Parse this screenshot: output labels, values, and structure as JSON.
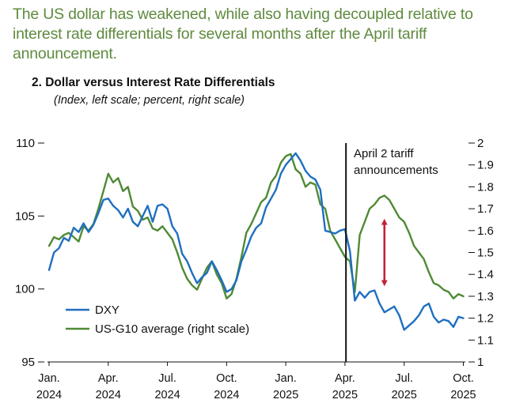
{
  "headline": "The US dollar has weakened, while also having decoupled relative to interest rate differentials for several months after the April tariff announcement.",
  "colors": {
    "headline": "#5e8a3e",
    "dxy": "#1f6fc0",
    "diff": "#4f8a35",
    "arrow": "#c0233a",
    "vline": "#111111"
  },
  "chart_data": {
    "type": "line",
    "title": "2. Dollar versus Interest Rate Differentials",
    "subtitle": "(Index, left scale; percent, right scale)",
    "x_ticks": [
      {
        "label": [
          "Jan.",
          "2024"
        ],
        "month": 0
      },
      {
        "label": [
          "Apr.",
          "2024"
        ],
        "month": 3
      },
      {
        "label": [
          "Jul.",
          "2024"
        ],
        "month": 6
      },
      {
        "label": [
          "Oct.",
          "2024"
        ],
        "month": 9
      },
      {
        "label": [
          "Jan.",
          "2025"
        ],
        "month": 12
      },
      {
        "label": [
          "Apr.",
          "2025"
        ],
        "month": 15
      },
      {
        "label": [
          "Jul.",
          "2025"
        ],
        "month": 18
      },
      {
        "label": [
          "Oct.",
          "2025"
        ],
        "month": 21
      }
    ],
    "xlim": [
      0,
      21.1
    ],
    "y_left": {
      "ylim": [
        95,
        110
      ],
      "ticks": [
        "95",
        "100",
        "105",
        "110"
      ]
    },
    "y_right": {
      "ylim": [
        1.0,
        2.0
      ],
      "ticks": [
        "1",
        "1.1",
        "1.2",
        "1.3",
        "1.4",
        "1.5",
        "1.6",
        "1.7",
        "1.8",
        "1.9",
        "2"
      ]
    },
    "annotation": {
      "lines": [
        "April 2 tariff",
        "announcements"
      ],
      "month": 15.05
    },
    "arrow": {
      "month": 17.0,
      "from_left": 100.4,
      "to_left": 104.6
    },
    "series": [
      {
        "name": "DXY",
        "axis": "left",
        "x": [
          0,
          0.25,
          0.5,
          0.75,
          1,
          1.25,
          1.5,
          1.75,
          2,
          2.25,
          2.5,
          2.75,
          3,
          3.25,
          3.5,
          3.75,
          4,
          4.25,
          4.5,
          4.75,
          5,
          5.25,
          5.5,
          5.75,
          6,
          6.25,
          6.5,
          6.75,
          7,
          7.25,
          7.5,
          7.75,
          8,
          8.25,
          8.5,
          8.75,
          9,
          9.25,
          9.5,
          9.75,
          10,
          10.25,
          10.5,
          10.75,
          11,
          11.25,
          11.5,
          11.75,
          12,
          12.25,
          12.5,
          12.75,
          13,
          13.25,
          13.5,
          13.75,
          14,
          14.25,
          14.5,
          14.75,
          15,
          15.25,
          15.5,
          15.75,
          16,
          16.25,
          16.5,
          16.75,
          17,
          17.25,
          17.5,
          17.75,
          18,
          18.25,
          18.5,
          18.75,
          19,
          19.25,
          19.5,
          19.75,
          20,
          20.25,
          20.5,
          20.75,
          21
        ],
        "values": [
          101.3,
          102.5,
          102.8,
          103.5,
          103.3,
          104.2,
          103.9,
          104.5,
          103.9,
          104.4,
          105.2,
          106.1,
          106.2,
          105.7,
          105.4,
          104.9,
          105.5,
          104.6,
          104.3,
          105.0,
          105.7,
          104.6,
          105.7,
          105.8,
          105.5,
          104.3,
          103.8,
          102.4,
          101.9,
          101.1,
          100.4,
          100.8,
          101.1,
          101.9,
          101.3,
          100.6,
          99.8,
          100.0,
          100.6,
          101.9,
          102.7,
          103.6,
          104.2,
          104.5,
          105.6,
          106.2,
          106.8,
          107.9,
          108.5,
          108.9,
          109.3,
          108.8,
          108.1,
          107.7,
          107.5,
          106.8,
          104.0,
          103.9,
          103.8,
          104.0,
          104.1,
          102.6,
          99.2,
          99.8,
          99.4,
          99.8,
          99.9,
          99.0,
          98.4,
          98.6,
          98.8,
          98.2,
          97.2,
          97.5,
          97.8,
          98.2,
          98.8,
          99.0,
          98.1,
          97.7,
          97.9,
          97.8,
          97.4,
          98.1,
          98.0
        ]
      },
      {
        "name": "US-G10 average (right scale)",
        "axis": "right",
        "x": [
          0,
          0.25,
          0.5,
          0.75,
          1,
          1.25,
          1.5,
          1.75,
          2,
          2.25,
          2.5,
          2.75,
          3,
          3.25,
          3.5,
          3.75,
          4,
          4.25,
          4.5,
          4.75,
          5,
          5.25,
          5.5,
          5.75,
          6,
          6.25,
          6.5,
          6.75,
          7,
          7.25,
          7.5,
          7.75,
          8,
          8.25,
          8.5,
          8.75,
          9,
          9.25,
          9.5,
          9.75,
          10,
          10.25,
          10.5,
          10.75,
          11,
          11.25,
          11.5,
          11.75,
          12,
          12.25,
          12.5,
          12.75,
          13,
          13.25,
          13.5,
          13.75,
          14,
          14.25,
          14.5,
          14.75,
          15,
          15.25,
          15.5,
          15.75,
          16,
          16.25,
          16.5,
          16.75,
          17,
          17.25,
          17.5,
          17.75,
          18,
          18.25,
          18.5,
          18.75,
          19,
          19.25,
          19.5,
          19.75,
          20,
          20.25,
          20.5,
          20.75,
          21
        ],
        "values": [
          1.53,
          1.57,
          1.56,
          1.58,
          1.59,
          1.57,
          1.55,
          1.62,
          1.6,
          1.63,
          1.7,
          1.78,
          1.86,
          1.82,
          1.84,
          1.78,
          1.8,
          1.71,
          1.69,
          1.65,
          1.66,
          1.61,
          1.6,
          1.62,
          1.59,
          1.56,
          1.5,
          1.43,
          1.38,
          1.35,
          1.33,
          1.38,
          1.43,
          1.46,
          1.4,
          1.36,
          1.29,
          1.31,
          1.38,
          1.48,
          1.59,
          1.63,
          1.68,
          1.73,
          1.75,
          1.82,
          1.85,
          1.91,
          1.94,
          1.95,
          1.88,
          1.86,
          1.8,
          1.82,
          1.81,
          1.72,
          1.7,
          1.6,
          1.56,
          1.52,
          1.48,
          1.46,
          1.32,
          1.58,
          1.64,
          1.7,
          1.72,
          1.75,
          1.76,
          1.74,
          1.7,
          1.66,
          1.64,
          1.59,
          1.53,
          1.5,
          1.47,
          1.41,
          1.36,
          1.35,
          1.33,
          1.32,
          1.29,
          1.31,
          1.3
        ]
      }
    ],
    "legend": {
      "position": "bottom-left",
      "entries": [
        "DXY",
        "US-G10 average (right scale)"
      ]
    }
  }
}
